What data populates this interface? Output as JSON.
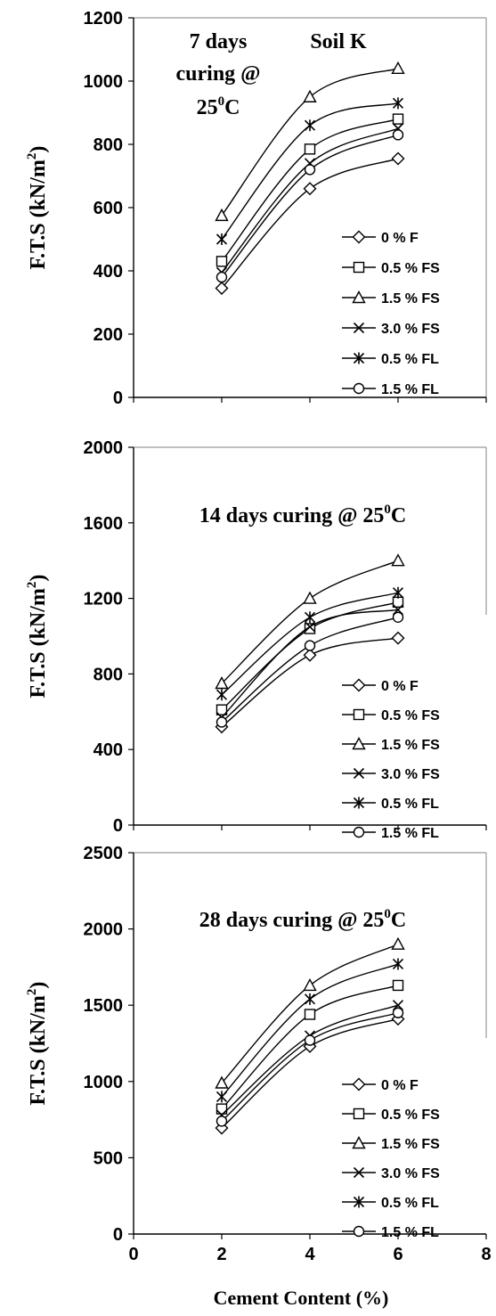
{
  "figure": {
    "xlabel": "Cement Content (%)",
    "ylabel_text": "F.T.S (kN/m",
    "ylabel_sup": "2",
    "ylabel_close": ")",
    "x_ticks": [
      "0",
      "2",
      "4",
      "6",
      "8"
    ]
  },
  "chart_data": [
    {
      "type": "line",
      "subplot": "top",
      "annotation": [
        "7 days",
        "curing @",
        "25",
        "0",
        "C"
      ],
      "annotation2": "Soil K",
      "xlim": [
        0,
        8
      ],
      "ylim": [
        0,
        1200
      ],
      "y_ticks": [
        "0",
        "200",
        "400",
        "600",
        "800",
        "1000",
        "1200"
      ],
      "legend_position": "right",
      "grid": false,
      "x": [
        2,
        4,
        6
      ],
      "series": [
        {
          "name": "0 % F",
          "marker": "diamond",
          "values": [
            345,
            660,
            755
          ]
        },
        {
          "name": "0.5 % FS",
          "marker": "square",
          "values": [
            430,
            785,
            880
          ]
        },
        {
          "name": "1.5 % FS",
          "marker": "triangle",
          "values": [
            575,
            950,
            1040
          ]
        },
        {
          "name": "3.0 % FS",
          "marker": "x",
          "values": [
            395,
            740,
            850
          ]
        },
        {
          "name": "0.5 % FL",
          "marker": "asterisk",
          "values": [
            500,
            860,
            930
          ]
        },
        {
          "name": "1.5 % FL",
          "marker": "circle",
          "values": [
            380,
            720,
            830
          ]
        }
      ]
    },
    {
      "type": "line",
      "subplot": "middle",
      "annotation": [
        "14 days curing @ 25",
        "0",
        "C"
      ],
      "xlim": [
        0,
        8
      ],
      "ylim": [
        0,
        2000
      ],
      "y_ticks": [
        "0",
        "400",
        "800",
        "1200",
        "1600",
        "2000"
      ],
      "legend_position": "right",
      "grid": false,
      "x": [
        2,
        4,
        6
      ],
      "series": [
        {
          "name": "0 % F",
          "marker": "diamond",
          "values": [
            520,
            900,
            990
          ]
        },
        {
          "name": "0.5 % FS",
          "marker": "square",
          "values": [
            610,
            1040,
            1180
          ]
        },
        {
          "name": "1.5 % FS",
          "marker": "triangle",
          "values": [
            750,
            1200,
            1400
          ]
        },
        {
          "name": "3.0 % FS",
          "marker": "x",
          "values": [
            570,
            1050,
            1140
          ]
        },
        {
          "name": "0.5 % FL",
          "marker": "asterisk",
          "values": [
            690,
            1100,
            1230
          ]
        },
        {
          "name": "1.5 % FL",
          "marker": "circle",
          "values": [
            545,
            950,
            1100
          ]
        }
      ]
    },
    {
      "type": "line",
      "subplot": "bottom",
      "annotation": [
        "28 days curing @ 25",
        "0",
        "C"
      ],
      "xlim": [
        0,
        8
      ],
      "ylim": [
        0,
        2500
      ],
      "y_ticks": [
        "0",
        "500",
        "1000",
        "1500",
        "2000",
        "2500"
      ],
      "legend_position": "right",
      "grid": false,
      "x": [
        2,
        4,
        6
      ],
      "series": [
        {
          "name": "0 % F",
          "marker": "diamond",
          "values": [
            695,
            1230,
            1410
          ]
        },
        {
          "name": "0.5 % FS",
          "marker": "square",
          "values": [
            820,
            1440,
            1630
          ]
        },
        {
          "name": "1.5 % FS",
          "marker": "triangle",
          "values": [
            990,
            1630,
            1900
          ]
        },
        {
          "name": "3.0 % FS",
          "marker": "x",
          "values": [
            780,
            1300,
            1500
          ]
        },
        {
          "name": "0.5 % FL",
          "marker": "asterisk",
          "values": [
            900,
            1540,
            1770
          ]
        },
        {
          "name": "1.5 % FL",
          "marker": "circle",
          "values": [
            740,
            1270,
            1450
          ]
        }
      ]
    }
  ]
}
